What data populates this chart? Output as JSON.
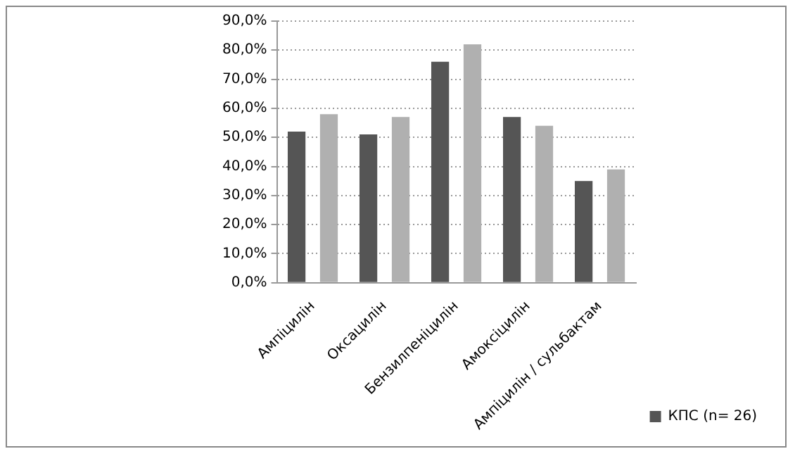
{
  "chart_data": {
    "type": "bar",
    "categories": [
      "Ампіцилін",
      "Оксацилін",
      "Бензилпеніцилін",
      "Амоксіцилін",
      "Ампіцилін / сульбактам"
    ],
    "series": [
      {
        "name": "КПС (n= 26)",
        "color": "#555555",
        "values": [
          52,
          51,
          76,
          57,
          35
        ]
      },
      {
        "color": "#b0b0b0",
        "values": [
          58,
          57,
          82,
          54,
          39
        ]
      }
    ],
    "ylim": [
      0,
      90
    ],
    "yticks": [
      {
        "value": 0,
        "label": "0,0%"
      },
      {
        "value": 10,
        "label": "10,0%"
      },
      {
        "value": 20,
        "label": "20,0%"
      },
      {
        "value": 30,
        "label": "30,0%"
      },
      {
        "value": 40,
        "label": "40,0%"
      },
      {
        "value": 50,
        "label": "50,0%"
      },
      {
        "value": 60,
        "label": "60,0%"
      },
      {
        "value": 70,
        "label": "70,0%"
      },
      {
        "value": 80,
        "label": "80,0%"
      },
      {
        "value": 90,
        "label": "90,0%"
      }
    ],
    "grid": "y",
    "legend": "right"
  }
}
